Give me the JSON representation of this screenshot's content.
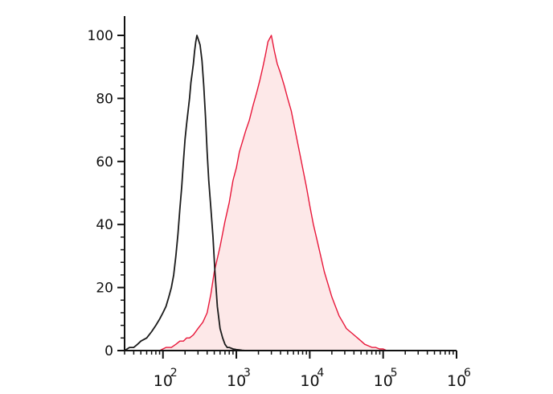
{
  "chart_data": {
    "type": "area",
    "x_scale": "log",
    "xlim": [
      30,
      1000000
    ],
    "ylim": [
      0,
      100
    ],
    "y_ticks": [
      0,
      20,
      40,
      60,
      80,
      100
    ],
    "y_tick_labels": [
      "0",
      "20",
      "40",
      "60",
      "80",
      "100"
    ],
    "x_ticks": [
      {
        "value": 100,
        "base": "10",
        "exp": "2"
      },
      {
        "value": 1000,
        "base": "10",
        "exp": "3"
      },
      {
        "value": 10000,
        "base": "10",
        "exp": "4"
      },
      {
        "value": 100000,
        "base": "10",
        "exp": "5"
      },
      {
        "value": 1000000,
        "base": "10",
        "exp": "6"
      }
    ],
    "grid": false,
    "legend": "none",
    "series": [
      {
        "color": "#e8173a",
        "fill": "#fde8e8",
        "filled": true,
        "x": [
          70,
          90,
          110,
          130,
          150,
          170,
          190,
          210,
          230,
          260,
          300,
          350,
          400,
          450,
          500,
          600,
          700,
          800,
          900,
          1000,
          1100,
          1200,
          1350,
          1500,
          1700,
          1900,
          2100,
          2300,
          2500,
          2700,
          3000,
          3300,
          3600,
          4000,
          4500,
          5000,
          5600,
          6300,
          7100,
          8000,
          9000,
          10000,
          11200,
          12600,
          14100,
          15800,
          17800,
          20000,
          22400,
          25100,
          28200,
          31600,
          35500,
          39800,
          44700,
          50100,
          56200,
          63100,
          70800,
          79400,
          89100,
          100000,
          112000,
          126000
        ],
        "y": [
          0,
          0,
          1,
          1,
          2,
          3,
          3,
          4,
          4,
          5,
          7,
          9,
          12,
          18,
          25,
          33,
          41,
          47,
          54,
          58,
          63,
          66,
          70,
          73,
          78,
          82,
          86,
          90,
          94,
          98,
          100,
          95,
          91,
          88,
          84,
          80,
          76,
          70,
          64,
          58,
          52,
          46,
          40,
          35,
          30,
          25,
          21,
          17,
          14,
          11,
          9,
          7,
          6,
          5,
          4,
          3,
          2,
          1.5,
          1,
          1,
          0.5,
          0.5,
          0,
          0
        ]
      },
      {
        "color": "#1a1a1a",
        "filled": false,
        "x": [
          30,
          35,
          40,
          45,
          50,
          60,
          70,
          80,
          90,
          100,
          110,
          120,
          130,
          140,
          150,
          160,
          170,
          180,
          190,
          200,
          210,
          220,
          230,
          240,
          250,
          260,
          270,
          280,
          290,
          300,
          320,
          340,
          360,
          380,
          400,
          420,
          450,
          480,
          510,
          550,
          600,
          650,
          700,
          750,
          800,
          900,
          1000,
          1100,
          1200,
          1350,
          1500,
          1700,
          2000
        ],
        "y": [
          0,
          1,
          1,
          2,
          3,
          4,
          6,
          8,
          10,
          12,
          14,
          17,
          20,
          24,
          30,
          37,
          45,
          52,
          60,
          67,
          72,
          76,
          80,
          85,
          88,
          91,
          95,
          98,
          100,
          99,
          97,
          92,
          84,
          74,
          63,
          54,
          45,
          36,
          25,
          14,
          7,
          4,
          2,
          1,
          1,
          0.5,
          0.3,
          0.2,
          0.1,
          0,
          0,
          0,
          0
        ]
      }
    ]
  }
}
